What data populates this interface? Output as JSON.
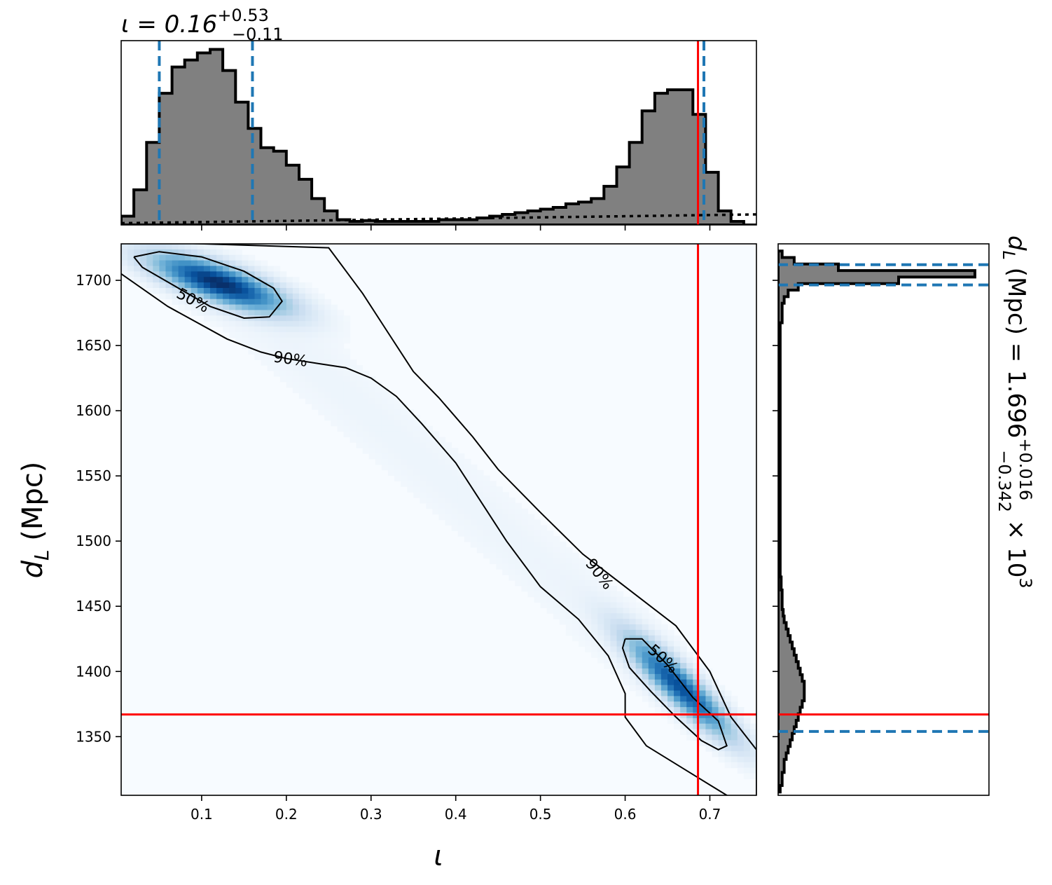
{
  "chart_data": [
    {
      "type": "heatmap",
      "panel": "joint",
      "xlabel": "ι",
      "ylabel": "d_L (Mpc)",
      "xlim": [
        0.005,
        0.755
      ],
      "ylim": [
        1305,
        1728
      ],
      "x_ticks": [
        "0.1",
        "0.2",
        "0.3",
        "0.4",
        "0.5",
        "0.6",
        "0.7"
      ],
      "y_ticks": [
        "1350",
        "1400",
        "1450",
        "1500",
        "1550",
        "1600",
        "1650",
        "1700"
      ],
      "colormap": "Blues",
      "density_modes": [
        {
          "x": 0.12,
          "y": 1698,
          "sx": 0.05,
          "sy": 14,
          "corr": -0.75,
          "weight": 1.0
        },
        {
          "x": 0.665,
          "y": 1388,
          "sx": 0.04,
          "sy": 25,
          "corr": -0.9,
          "weight": 0.85
        }
      ],
      "contours": [
        {
          "label": "50%",
          "region": "upper-left",
          "points": [
            [
              0.02,
              1718
            ],
            [
              0.05,
              1722
            ],
            [
              0.1,
              1718
            ],
            [
              0.15,
              1707
            ],
            [
              0.185,
              1694
            ],
            [
              0.195,
              1684
            ],
            [
              0.18,
              1672
            ],
            [
              0.15,
              1671
            ],
            [
              0.11,
              1680
            ],
            [
              0.07,
              1695
            ],
            [
              0.03,
              1710
            ],
            [
              0.02,
              1718
            ]
          ]
        },
        {
          "label": "50%",
          "region": "lower-right",
          "points": [
            [
              0.6,
              1425
            ],
            [
              0.62,
              1425
            ],
            [
              0.65,
              1405
            ],
            [
              0.68,
              1380
            ],
            [
              0.71,
              1362
            ],
            [
              0.72,
              1343
            ],
            [
              0.71,
              1340
            ],
            [
              0.69,
              1347
            ],
            [
              0.66,
              1365
            ],
            [
              0.63,
              1385
            ],
            [
              0.605,
              1403
            ],
            [
              0.597,
              1418
            ],
            [
              0.6,
              1425
            ]
          ]
        },
        {
          "label": "90%",
          "region": "outer",
          "points": [
            [
              0.005,
              1705
            ],
            [
              0.06,
              1680
            ],
            [
              0.13,
              1655
            ],
            [
              0.17,
              1645
            ],
            [
              0.2,
              1640
            ],
            [
              0.24,
              1636
            ],
            [
              0.27,
              1633
            ],
            [
              0.3,
              1625
            ],
            [
              0.33,
              1611
            ],
            [
              0.36,
              1590
            ],
            [
              0.4,
              1560
            ],
            [
              0.43,
              1530
            ],
            [
              0.46,
              1500
            ],
            [
              0.5,
              1465
            ],
            [
              0.545,
              1440
            ],
            [
              0.58,
              1412
            ],
            [
              0.6,
              1383
            ],
            [
              0.6,
              1365
            ],
            [
              0.625,
              1343
            ],
            [
              0.67,
              1325
            ],
            [
              0.72,
              1305
            ],
            [
              0.755,
              1295
            ],
            [
              0.755,
              1340
            ],
            [
              0.725,
              1365
            ],
            [
              0.7,
              1400
            ],
            [
              0.66,
              1435
            ],
            [
              0.6,
              1465
            ],
            [
              0.55,
              1490
            ],
            [
              0.5,
              1522
            ],
            [
              0.45,
              1555
            ],
            [
              0.42,
              1580
            ],
            [
              0.38,
              1610
            ],
            [
              0.35,
              1630
            ],
            [
              0.32,
              1660
            ],
            [
              0.29,
              1690
            ],
            [
              0.25,
              1725
            ],
            [
              0.005,
              1730
            ]
          ]
        }
      ],
      "lines": [
        {
          "orientation": "vertical",
          "x": 0.686,
          "color": "#ff0000"
        },
        {
          "orientation": "horizontal",
          "y": 1367,
          "color": "#ff0000"
        }
      ]
    },
    {
      "type": "bar",
      "panel": "top-marginal",
      "title": "ι = 0.16+0.53−0.11",
      "title_parts": {
        "lhs": "ι = 0.16",
        "sup": "+0.53",
        "sub": "−0.11"
      },
      "x": [
        0.0125,
        0.0275,
        0.0425,
        0.0575,
        0.0725,
        0.0875,
        0.1025,
        0.1175,
        0.1325,
        0.1475,
        0.1625,
        0.1775,
        0.1925,
        0.2075,
        0.2225,
        0.2375,
        0.2525,
        0.2675,
        0.2825,
        0.2975,
        0.3125,
        0.3275,
        0.3425,
        0.3575,
        0.3725,
        0.3875,
        0.4025,
        0.4175,
        0.4325,
        0.4475,
        0.4625,
        0.4775,
        0.4925,
        0.5075,
        0.5225,
        0.5375,
        0.5525,
        0.5675,
        0.5825,
        0.5975,
        0.6125,
        0.6275,
        0.6425,
        0.6575,
        0.6725,
        0.6875,
        0.7025,
        0.7175,
        0.7325,
        0.7475
      ],
      "bin_width": 0.015,
      "values": [
        0.05,
        0.2,
        0.47,
        0.75,
        0.9,
        0.94,
        0.98,
        1.0,
        0.88,
        0.7,
        0.55,
        0.44,
        0.42,
        0.34,
        0.26,
        0.15,
        0.08,
        0.03,
        0.02,
        0.025,
        0.02,
        0.02,
        0.02,
        0.02,
        0.02,
        0.03,
        0.03,
        0.03,
        0.04,
        0.05,
        0.06,
        0.07,
        0.08,
        0.09,
        0.1,
        0.12,
        0.13,
        0.15,
        0.22,
        0.33,
        0.47,
        0.65,
        0.75,
        0.77,
        0.77,
        0.63,
        0.3,
        0.08,
        0.02,
        0.0
      ],
      "ylim": [
        0,
        1.05
      ],
      "prior_level": 0.03,
      "quantile_lines": [
        0.05,
        0.16,
        0.693
      ],
      "truth": 0.686
    },
    {
      "type": "bar",
      "panel": "right-marginal",
      "title": "d_L (Mpc) = 1.696+0.016−0.342 × 10^3",
      "title_parts": {
        "lhs": "d",
        "lhs_sub": "L",
        "mid": " (Mpc) = 1.696",
        "sup": "+0.016",
        "sub": "−0.342",
        "tail": " × 10",
        "exp": "3"
      },
      "y": [
        1720,
        1715,
        1710,
        1705,
        1700,
        1695,
        1690,
        1685,
        1680,
        1675,
        1670,
        1665,
        1660,
        1655,
        1650,
        1645,
        1640,
        1635,
        1630,
        1625,
        1620,
        1615,
        1610,
        1605,
        1600,
        1595,
        1590,
        1585,
        1580,
        1575,
        1570,
        1565,
        1560,
        1555,
        1550,
        1545,
        1540,
        1535,
        1530,
        1525,
        1520,
        1515,
        1510,
        1505,
        1500,
        1495,
        1490,
        1485,
        1480,
        1475,
        1470,
        1465,
        1460,
        1455,
        1450,
        1445,
        1440,
        1435,
        1430,
        1425,
        1420,
        1415,
        1410,
        1405,
        1400,
        1395,
        1390,
        1385,
        1380,
        1375,
        1370,
        1365,
        1360,
        1355,
        1350,
        1345,
        1340,
        1335,
        1330,
        1325,
        1320,
        1315,
        1310
      ],
      "bin_width": 5,
      "values": [
        0.02,
        0.08,
        0.3,
        0.98,
        0.6,
        0.1,
        0.05,
        0.03,
        0.02,
        0.02,
        0.02,
        0.01,
        0.01,
        0.01,
        0.01,
        0.01,
        0.01,
        0.01,
        0.01,
        0.01,
        0.01,
        0.01,
        0.01,
        0.01,
        0.01,
        0.01,
        0.01,
        0.01,
        0.01,
        0.01,
        0.01,
        0.01,
        0.01,
        0.01,
        0.01,
        0.01,
        0.01,
        0.01,
        0.01,
        0.01,
        0.01,
        0.01,
        0.01,
        0.01,
        0.01,
        0.01,
        0.01,
        0.01,
        0.01,
        0.01,
        0.015,
        0.015,
        0.02,
        0.02,
        0.02,
        0.025,
        0.03,
        0.04,
        0.05,
        0.06,
        0.07,
        0.08,
        0.09,
        0.1,
        0.11,
        0.12,
        0.13,
        0.13,
        0.13,
        0.12,
        0.11,
        0.1,
        0.09,
        0.08,
        0.07,
        0.06,
        0.05,
        0.04,
        0.03,
        0.03,
        0.02,
        0.02,
        0.01
      ],
      "xlim": [
        0,
        1.05
      ],
      "quantile_lines": [
        1354,
        1696.5,
        1712
      ],
      "truth": 1367
    }
  ],
  "colors": {
    "hist_fill": "#808080",
    "hist_edge": "#000000",
    "quantile": "#1f77b4",
    "truth": "#ff0000",
    "contour": "#000000"
  }
}
